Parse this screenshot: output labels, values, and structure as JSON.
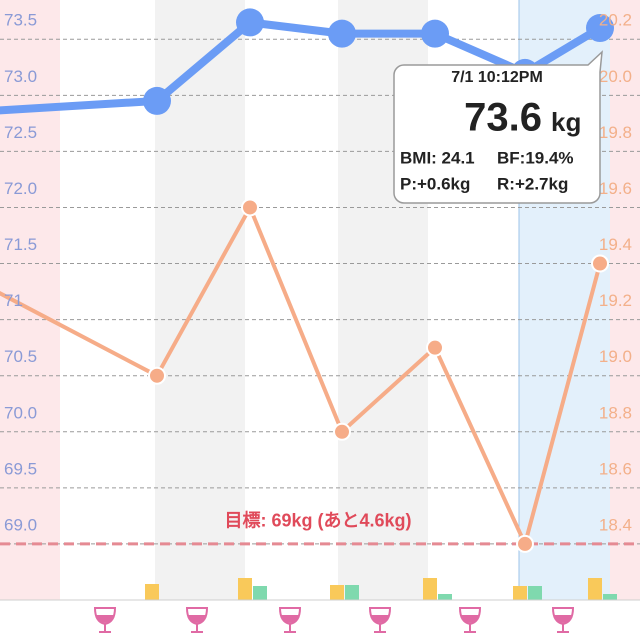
{
  "chart_data": {
    "type": "line",
    "categories": [
      null,
      null,
      null,
      null,
      null,
      null,
      null
    ],
    "series": [
      {
        "color": "#6b9cf5",
        "values": [
          72.85,
          72.95,
          73.65,
          73.55,
          73.55,
          73.2,
          73.6
        ]
      },
      {
        "color": "#f6ac88",
        "axis": "y2",
        "values": [
          19.35,
          19.0,
          19.6,
          18.8,
          19.1,
          18.4,
          19.4
        ]
      }
    ],
    "bars": [
      {
        "color": "#f9c95a",
        "values": [
          null,
          16,
          22,
          15,
          22,
          14,
          22
        ]
      },
      {
        "color": "#7fd9ae",
        "values": [
          null,
          null,
          14,
          15,
          6,
          14,
          6
        ]
      }
    ],
    "ylim": [
      68.5,
      73.85
    ],
    "yticks": [
      {
        "value": 69,
        "label": "69.0"
      },
      69.5,
      {
        "value": 70,
        "label": "70.0"
      },
      70.5,
      71.0,
      71.5,
      {
        "value": 72,
        "label": "72.0"
      },
      72.5,
      {
        "value": 73,
        "label": "73.0"
      },
      73.5
    ],
    "y2lim": [
      18.2,
      20.34
    ],
    "y2ticks": [
      18.4,
      18.6,
      18.8,
      {
        "value": 19,
        "label": "19.0"
      },
      19.2,
      19.4,
      19.6,
      19.8,
      {
        "value": 20,
        "label": "20.0"
      },
      20.2
    ],
    "grid": true,
    "goal": 69,
    "goal_label": "目標: 69kg (あと4.6kg)",
    "tooltip": {
      "time": "7/1 10:12PM",
      "weight": "73.6",
      "unit": "kg",
      "bmi": "BMI: 24.1",
      "bf": "BF:19.4%",
      "p": "P:+0.6kg",
      "r": "R:+2.7kg"
    }
  }
}
